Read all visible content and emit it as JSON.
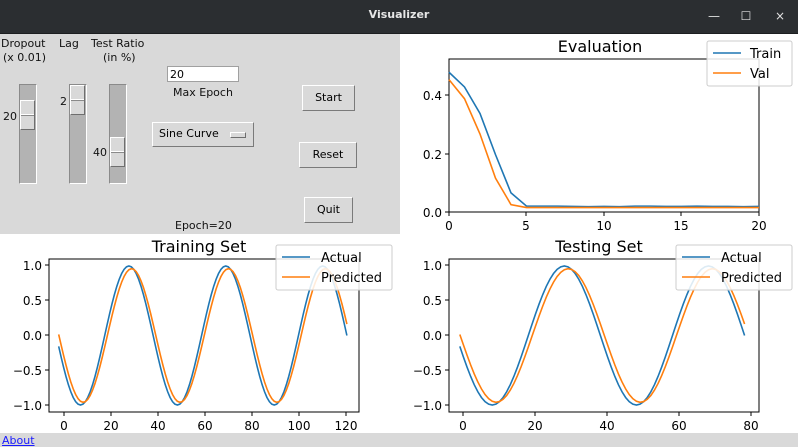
{
  "window": {
    "title": "Visualizer",
    "controls": {
      "minimize": "—",
      "maximize": "☐",
      "close": "×"
    }
  },
  "controls": {
    "dropout": {
      "label_line1": "Dropout",
      "label_line2": "(x 0.01)",
      "value": "20"
    },
    "lag": {
      "label": "Lag",
      "value": "2"
    },
    "test_ratio": {
      "label_line1": "Test Ratio",
      "label_line2": "(in %)",
      "value": "40"
    },
    "max_epoch": {
      "value": "20",
      "label": "Max Epoch"
    },
    "dataset_select": {
      "selected": "Sine Curve"
    },
    "buttons": {
      "start": "Start",
      "reset": "Reset",
      "quit": "Quit"
    },
    "status": "Epoch=20"
  },
  "footer": {
    "about_link": "About"
  },
  "colors": {
    "train": "#1f77b4",
    "val": "#ff7f0e",
    "panel_bg": "#d9d9d9",
    "titlebar_bg": "#2b2e31"
  },
  "chart_data": [
    {
      "type": "line",
      "title": "Evaluation",
      "xlabel": "",
      "ylabel": "",
      "xlim": [
        0,
        20
      ],
      "ylim": [
        0,
        0.52
      ],
      "xticks": [
        "0",
        "5",
        "10",
        "15",
        "20"
      ],
      "yticks": [
        "0.0",
        "0.2",
        "0.4"
      ],
      "legend": {
        "position": "upper right",
        "entries": [
          "Train",
          "Val"
        ]
      },
      "x": [
        0,
        1,
        2,
        3,
        4,
        5,
        6,
        7,
        8,
        9,
        10,
        11,
        12,
        13,
        14,
        15,
        16,
        17,
        18,
        19,
        20
      ],
      "series": [
        {
          "name": "Train",
          "values": [
            0.475,
            0.425,
            0.335,
            0.195,
            0.065,
            0.02,
            0.02,
            0.02,
            0.019,
            0.018,
            0.019,
            0.018,
            0.02,
            0.02,
            0.019,
            0.019,
            0.02,
            0.019,
            0.019,
            0.018,
            0.019
          ]
        },
        {
          "name": "Val",
          "values": [
            0.45,
            0.385,
            0.265,
            0.115,
            0.025,
            0.015,
            0.015,
            0.015,
            0.015,
            0.015,
            0.015,
            0.015,
            0.015,
            0.015,
            0.015,
            0.015,
            0.015,
            0.015,
            0.015,
            0.015,
            0.015
          ]
        }
      ]
    },
    {
      "type": "line",
      "title": "Training Set",
      "xlim": [
        -4,
        124
      ],
      "ylim": [
        -1.1,
        1.1
      ],
      "xticks": [
        "0",
        "20",
        "40",
        "60",
        "80",
        "100",
        "120"
      ],
      "yticks": [
        "−1.0",
        "−0.5",
        "0.0",
        "0.5",
        "1.0"
      ],
      "legend": {
        "position": "upper right",
        "entries": [
          "Actual",
          "Predicted"
        ]
      },
      "x_range": [
        0,
        119
      ],
      "series": [
        {
          "name": "Actual",
          "description": "sine wave, period ~40, peaks at x≈29,69,109, troughs at x≈9,49,89, starts ≈-0.15, ends ≈0.0",
          "amplitude": 1.0
        },
        {
          "name": "Predicted",
          "description": "sine wave lagging Actual by ~1 step, amplitude ~0.96, starts ≈0.02, ends ≈0.17",
          "amplitude": 0.96
        }
      ]
    },
    {
      "type": "line",
      "title": "Testing Set",
      "xlim": [
        -3,
        83
      ],
      "ylim": [
        -1.1,
        1.1
      ],
      "xticks": [
        "0",
        "20",
        "40",
        "60",
        "80"
      ],
      "yticks": [
        "−1.0",
        "−0.5",
        "0.0",
        "0.5",
        "1.0"
      ],
      "legend": {
        "position": "upper right",
        "entries": [
          "Actual",
          "Predicted"
        ]
      },
      "x_range": [
        0,
        79
      ],
      "series": [
        {
          "name": "Actual",
          "description": "sine wave, period ~40, peaks at x≈29,69, troughs at x≈9,49, starts ≈-0.15, ends ≈0.0",
          "amplitude": 1.0
        },
        {
          "name": "Predicted",
          "description": "sine wave lagging Actual by ~1 step, amplitude ~0.96, starts ≈0.02, ends ≈0.17",
          "amplitude": 0.96
        }
      ]
    }
  ]
}
